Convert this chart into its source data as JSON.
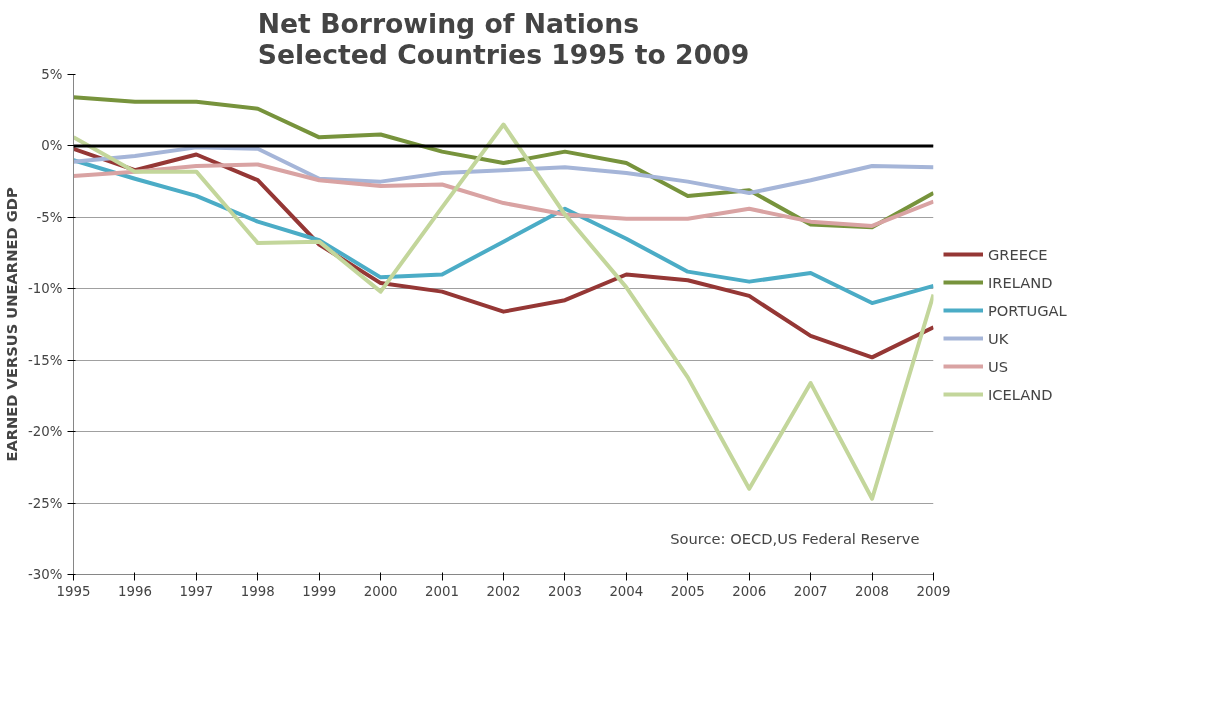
{
  "chart_data": {
    "type": "line",
    "title": "Net Borrowing of Nations\nSelected Countries 1995 to 2009",
    "ylabel": "EARNED VERSUS UNEARNED GDP",
    "x": [
      1995,
      1996,
      1997,
      1998,
      1999,
      2000,
      2001,
      2002,
      2003,
      2004,
      2005,
      2006,
      2007,
      2008,
      2009
    ],
    "xlim": [
      1995,
      2009
    ],
    "xticks": [
      1995,
      1996,
      1997,
      1998,
      1999,
      2000,
      2001,
      2002,
      2003,
      2004,
      2005,
      2006,
      2007,
      2008,
      2009
    ],
    "ylim": [
      -30,
      5
    ],
    "yticks": [
      {
        "value": -30,
        "label": "-30%"
      },
      {
        "value": -25,
        "label": "-25%"
      },
      {
        "value": -20,
        "label": "-20%"
      },
      {
        "value": -15,
        "label": "-15%"
      },
      {
        "value": -10,
        "label": "-10%"
      },
      {
        "value": -5,
        "label": "-5%"
      },
      {
        "value": 0,
        "label": "0%"
      },
      {
        "value": 5,
        "label": "5%"
      }
    ],
    "grid": "y",
    "legend": "right",
    "marker": "none",
    "line_style": "solid",
    "series": [
      {
        "name": "GREECE",
        "color": "#953735",
        "values": [
          -0.2,
          -1.7,
          -0.6,
          -2.4,
          -6.9,
          -9.6,
          -10.2,
          -11.6,
          -10.8,
          -9.0,
          -9.4,
          -10.5,
          -13.3,
          -14.8,
          -12.7
        ]
      },
      {
        "name": "IRELAND",
        "color": "#77933c",
        "values": [
          3.4,
          3.1,
          3.1,
          2.6,
          0.6,
          0.8,
          -0.4,
          -1.2,
          -0.4,
          -1.2,
          -3.5,
          -3.1,
          -5.5,
          -5.7,
          -3.3
        ]
      },
      {
        "name": "PORTUGAL",
        "color": "#4bacc6",
        "values": [
          -1.0,
          -2.3,
          -3.5,
          -5.3,
          -6.6,
          -9.2,
          -9.0,
          -6.7,
          -4.4,
          -6.5,
          -8.8,
          -9.5,
          -8.9,
          -11.0,
          -9.8
        ]
      },
      {
        "name": "UK",
        "color": "#a5b5d8",
        "values": [
          -1.1,
          -0.7,
          -0.1,
          -0.2,
          -2.3,
          -2.5,
          -1.9,
          -1.7,
          -1.5,
          -1.9,
          -2.5,
          -3.3,
          -2.4,
          -1.4,
          -1.5
        ]
      },
      {
        "name": "US",
        "color": "#d9a3a3",
        "values": [
          -2.1,
          -1.8,
          -1.4,
          -1.3,
          -2.4,
          -2.8,
          -2.7,
          -4.0,
          -4.8,
          -5.1,
          -5.1,
          -4.4,
          -5.3,
          -5.6,
          -3.9
        ]
      },
      {
        "name": "ICELAND",
        "color": "#c3d69b",
        "values": [
          0.6,
          -1.8,
          -1.8,
          -6.8,
          -6.7,
          -10.2,
          -4.3,
          1.5,
          -4.8,
          -9.9,
          -16.2,
          -24.0,
          -16.6,
          -24.7,
          -10.4
        ]
      }
    ],
    "ref_lines": [
      {
        "axis": "y",
        "value": 0,
        "label": null,
        "color": "#000000"
      }
    ],
    "annotations": [
      "Source: OECD,US Federal Reserve"
    ]
  }
}
